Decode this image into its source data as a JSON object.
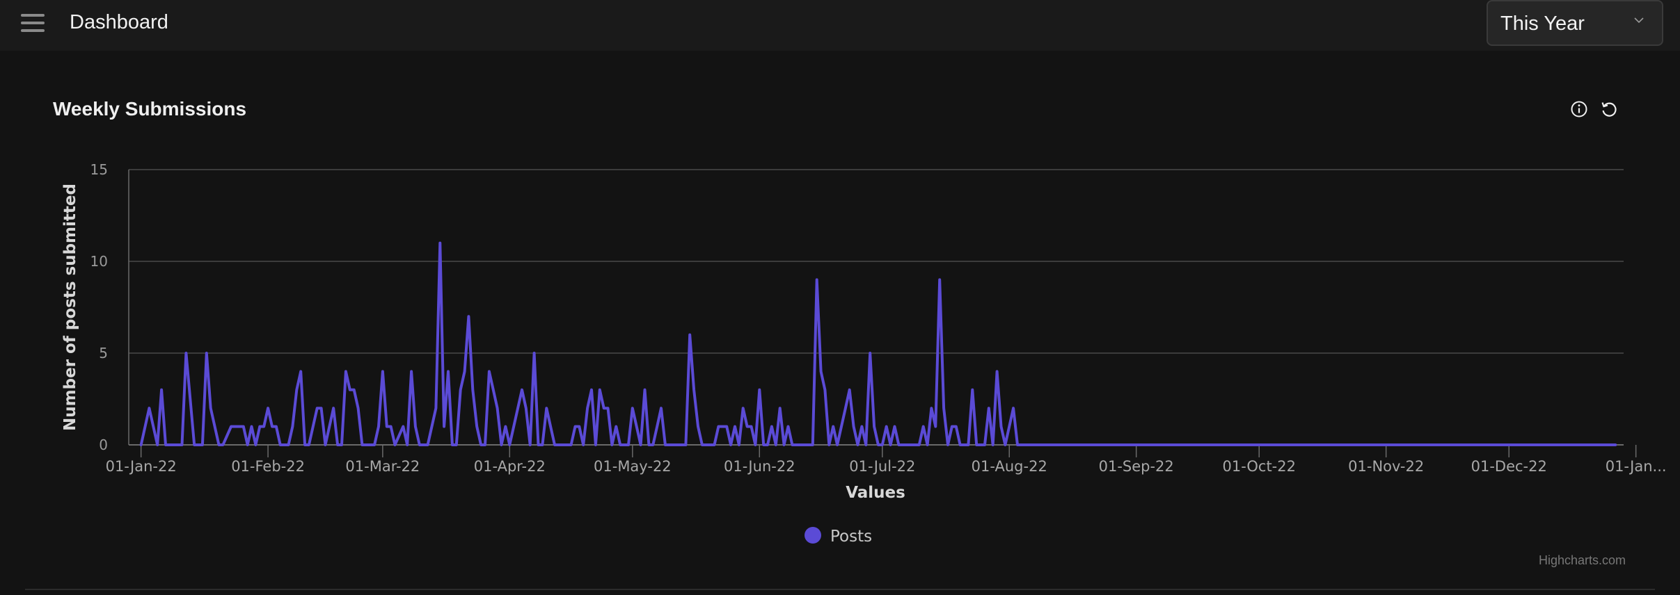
{
  "header": {
    "title": "Dashboard",
    "period_select": {
      "value": "This Year"
    }
  },
  "card": {
    "title": "Weekly Submissions"
  },
  "icons": {
    "menu": "hamburger-icon",
    "info": "info-icon",
    "reset": "reset-icon",
    "dropdown": "chevron-down-icon"
  },
  "colors": {
    "series": "#5b4bd6",
    "background": "#131313",
    "grid": "#4a4a4a"
  },
  "chart_data": {
    "type": "line",
    "ylabel": "Number of posts submitted",
    "xlabel": "Values",
    "ylim": [
      0,
      15
    ],
    "xlim": [
      "2021-12-29",
      "2022-12-29"
    ],
    "y_ticks": [
      0,
      5,
      10,
      15
    ],
    "x_ticks": [
      {
        "date": "2022-01-01",
        "label": "01-Jan-22"
      },
      {
        "date": "2022-02-01",
        "label": "01-Feb-22"
      },
      {
        "date": "2022-03-01",
        "label": "01-Mar-22"
      },
      {
        "date": "2022-04-01",
        "label": "01-Apr-22"
      },
      {
        "date": "2022-05-01",
        "label": "01-May-22"
      },
      {
        "date": "2022-06-01",
        "label": "01-Jun-22"
      },
      {
        "date": "2022-07-01",
        "label": "01-Jul-22"
      },
      {
        "date": "2022-08-01",
        "label": "01-Aug-22"
      },
      {
        "date": "2022-09-01",
        "label": "01-Sep-22"
      },
      {
        "date": "2022-10-01",
        "label": "01-Oct-22"
      },
      {
        "date": "2022-11-01",
        "label": "01-Nov-22"
      },
      {
        "date": "2022-12-01",
        "label": "01-Dec-22"
      },
      {
        "date": "2023-01-01",
        "label": "01-Jan..."
      }
    ],
    "legend": "bottom-center",
    "grid": true,
    "series": [
      {
        "name": "Posts",
        "points": [
          [
            "2022-01-01",
            0
          ],
          [
            "2022-01-03",
            2
          ],
          [
            "2022-01-05",
            0
          ],
          [
            "2022-01-06",
            3
          ],
          [
            "2022-01-07",
            0
          ],
          [
            "2022-01-11",
            0
          ],
          [
            "2022-01-12",
            5
          ],
          [
            "2022-01-14",
            0
          ],
          [
            "2022-01-16",
            0
          ],
          [
            "2022-01-17",
            5
          ],
          [
            "2022-01-18",
            2
          ],
          [
            "2022-01-20",
            0
          ],
          [
            "2022-01-21",
            0
          ],
          [
            "2022-01-23",
            1
          ],
          [
            "2022-01-26",
            1
          ],
          [
            "2022-01-27",
            0
          ],
          [
            "2022-01-28",
            1
          ],
          [
            "2022-01-29",
            0
          ],
          [
            "2022-01-30",
            1
          ],
          [
            "2022-01-31",
            1
          ],
          [
            "2022-02-01",
            2
          ],
          [
            "2022-02-02",
            1
          ],
          [
            "2022-02-03",
            1
          ],
          [
            "2022-02-04",
            0
          ],
          [
            "2022-02-06",
            0
          ],
          [
            "2022-02-07",
            1
          ],
          [
            "2022-02-08",
            3
          ],
          [
            "2022-02-09",
            4
          ],
          [
            "2022-02-10",
            0
          ],
          [
            "2022-02-11",
            0
          ],
          [
            "2022-02-13",
            2
          ],
          [
            "2022-02-14",
            2
          ],
          [
            "2022-02-15",
            0
          ],
          [
            "2022-02-17",
            2
          ],
          [
            "2022-02-18",
            0
          ],
          [
            "2022-02-19",
            0
          ],
          [
            "2022-02-20",
            4
          ],
          [
            "2022-02-21",
            3
          ],
          [
            "2022-02-22",
            3
          ],
          [
            "2022-02-23",
            2
          ],
          [
            "2022-02-24",
            0
          ],
          [
            "2022-02-27",
            0
          ],
          [
            "2022-02-28",
            1
          ],
          [
            "2022-03-01",
            4
          ],
          [
            "2022-03-02",
            1
          ],
          [
            "2022-03-03",
            1
          ],
          [
            "2022-03-04",
            0
          ],
          [
            "2022-03-06",
            1
          ],
          [
            "2022-03-07",
            0
          ],
          [
            "2022-03-08",
            4
          ],
          [
            "2022-03-09",
            1
          ],
          [
            "2022-03-10",
            0
          ],
          [
            "2022-03-12",
            0
          ],
          [
            "2022-03-14",
            2
          ],
          [
            "2022-03-15",
            11
          ],
          [
            "2022-03-16",
            1
          ],
          [
            "2022-03-17",
            4
          ],
          [
            "2022-03-18",
            0
          ],
          [
            "2022-03-19",
            0
          ],
          [
            "2022-03-20",
            3
          ],
          [
            "2022-03-21",
            4
          ],
          [
            "2022-03-22",
            7
          ],
          [
            "2022-03-23",
            3
          ],
          [
            "2022-03-24",
            1
          ],
          [
            "2022-03-25",
            0
          ],
          [
            "2022-03-26",
            0
          ],
          [
            "2022-03-27",
            4
          ],
          [
            "2022-03-28",
            3
          ],
          [
            "2022-03-29",
            2
          ],
          [
            "2022-03-30",
            0
          ],
          [
            "2022-03-31",
            1
          ],
          [
            "2022-04-01",
            0
          ],
          [
            "2022-04-03",
            2
          ],
          [
            "2022-04-04",
            3
          ],
          [
            "2022-04-05",
            2
          ],
          [
            "2022-04-06",
            0
          ],
          [
            "2022-04-07",
            5
          ],
          [
            "2022-04-08",
            0
          ],
          [
            "2022-04-09",
            0
          ],
          [
            "2022-04-10",
            2
          ],
          [
            "2022-04-11",
            1
          ],
          [
            "2022-04-12",
            0
          ],
          [
            "2022-04-16",
            0
          ],
          [
            "2022-04-17",
            1
          ],
          [
            "2022-04-18",
            1
          ],
          [
            "2022-04-19",
            0
          ],
          [
            "2022-04-20",
            2
          ],
          [
            "2022-04-21",
            3
          ],
          [
            "2022-04-22",
            0
          ],
          [
            "2022-04-23",
            3
          ],
          [
            "2022-04-24",
            2
          ],
          [
            "2022-04-25",
            2
          ],
          [
            "2022-04-26",
            0
          ],
          [
            "2022-04-27",
            1
          ],
          [
            "2022-04-28",
            0
          ],
          [
            "2022-04-30",
            0
          ],
          [
            "2022-05-01",
            2
          ],
          [
            "2022-05-02",
            1
          ],
          [
            "2022-05-03",
            0
          ],
          [
            "2022-05-04",
            3
          ],
          [
            "2022-05-05",
            0
          ],
          [
            "2022-05-06",
            0
          ],
          [
            "2022-05-07",
            1
          ],
          [
            "2022-05-08",
            2
          ],
          [
            "2022-05-09",
            0
          ],
          [
            "2022-05-14",
            0
          ],
          [
            "2022-05-15",
            6
          ],
          [
            "2022-05-16",
            3
          ],
          [
            "2022-05-17",
            1
          ],
          [
            "2022-05-18",
            0
          ],
          [
            "2022-05-21",
            0
          ],
          [
            "2022-05-22",
            1
          ],
          [
            "2022-05-23",
            1
          ],
          [
            "2022-05-24",
            1
          ],
          [
            "2022-05-25",
            0
          ],
          [
            "2022-05-26",
            1
          ],
          [
            "2022-05-27",
            0
          ],
          [
            "2022-05-28",
            2
          ],
          [
            "2022-05-29",
            1
          ],
          [
            "2022-05-30",
            1
          ],
          [
            "2022-05-31",
            0
          ],
          [
            "2022-06-01",
            3
          ],
          [
            "2022-06-02",
            0
          ],
          [
            "2022-06-03",
            0
          ],
          [
            "2022-06-04",
            1
          ],
          [
            "2022-06-05",
            0
          ],
          [
            "2022-06-06",
            2
          ],
          [
            "2022-06-07",
            0
          ],
          [
            "2022-06-08",
            1
          ],
          [
            "2022-06-09",
            0
          ],
          [
            "2022-06-14",
            0
          ],
          [
            "2022-06-15",
            9
          ],
          [
            "2022-06-16",
            4
          ],
          [
            "2022-06-17",
            3
          ],
          [
            "2022-06-18",
            0
          ],
          [
            "2022-06-19",
            1
          ],
          [
            "2022-06-20",
            0
          ],
          [
            "2022-06-21",
            1
          ],
          [
            "2022-06-22",
            2
          ],
          [
            "2022-06-23",
            3
          ],
          [
            "2022-06-24",
            1
          ],
          [
            "2022-06-25",
            0
          ],
          [
            "2022-06-26",
            1
          ],
          [
            "2022-06-27",
            0
          ],
          [
            "2022-06-28",
            5
          ],
          [
            "2022-06-29",
            1
          ],
          [
            "2022-06-30",
            0
          ],
          [
            "2022-07-01",
            0
          ],
          [
            "2022-07-02",
            1
          ],
          [
            "2022-07-03",
            0
          ],
          [
            "2022-07-04",
            1
          ],
          [
            "2022-07-05",
            0
          ],
          [
            "2022-07-10",
            0
          ],
          [
            "2022-07-11",
            1
          ],
          [
            "2022-07-12",
            0
          ],
          [
            "2022-07-13",
            2
          ],
          [
            "2022-07-14",
            1
          ],
          [
            "2022-07-15",
            9
          ],
          [
            "2022-07-16",
            2
          ],
          [
            "2022-07-17",
            0
          ],
          [
            "2022-07-18",
            1
          ],
          [
            "2022-07-19",
            1
          ],
          [
            "2022-07-20",
            0
          ],
          [
            "2022-07-22",
            0
          ],
          [
            "2022-07-23",
            3
          ],
          [
            "2022-07-24",
            0
          ],
          [
            "2022-07-26",
            0
          ],
          [
            "2022-07-27",
            2
          ],
          [
            "2022-07-28",
            0
          ],
          [
            "2022-07-29",
            4
          ],
          [
            "2022-07-30",
            1
          ],
          [
            "2022-07-31",
            0
          ],
          [
            "2022-08-02",
            2
          ],
          [
            "2022-08-03",
            0
          ],
          [
            "2022-12-27",
            0
          ]
        ]
      }
    ],
    "credit": "Highcharts.com"
  }
}
